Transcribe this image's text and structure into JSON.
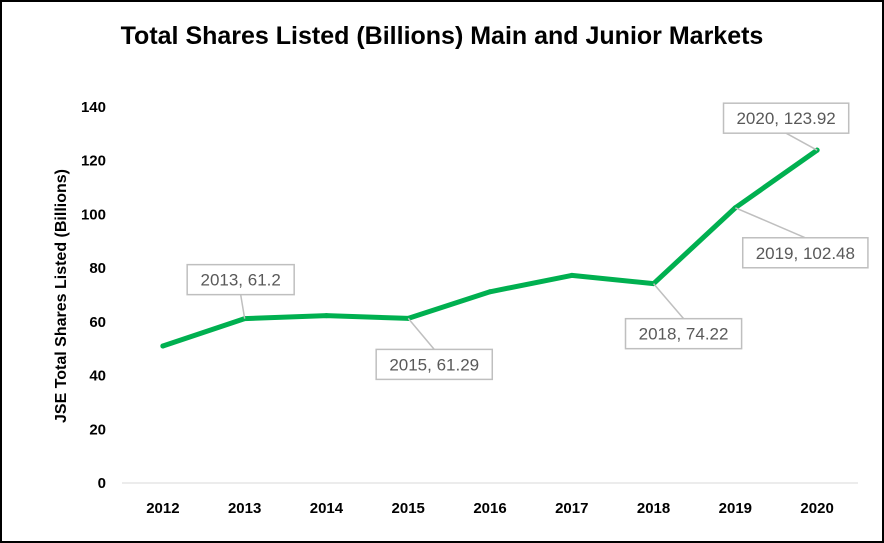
{
  "chart_data": {
    "type": "line",
    "title": "Total Shares Listed (Billions) Main and Junior Markets",
    "xlabel": "",
    "ylabel": "JSE Total Shares Listed (Billions)",
    "ylim": [
      0,
      140
    ],
    "yticks": [
      0,
      20,
      40,
      60,
      80,
      100,
      120,
      140
    ],
    "grid": false,
    "categories": [
      "2012",
      "2013",
      "2014",
      "2015",
      "2016",
      "2017",
      "2018",
      "2019",
      "2020"
    ],
    "series": [
      {
        "name": "JSE Total Shares Listed",
        "color": "#00b050",
        "values": [
          51,
          61.2,
          62.3,
          61.29,
          71.2,
          77.3,
          74.22,
          102.48,
          123.92
        ]
      }
    ],
    "annotations": [
      {
        "index": 1,
        "text": "2013, 61.2"
      },
      {
        "index": 3,
        "text": "2015, 61.29"
      },
      {
        "index": 6,
        "text": "2018, 74.22"
      },
      {
        "index": 7,
        "text": "2019, 102.48"
      },
      {
        "index": 8,
        "text": "2020, 123.92"
      }
    ]
  }
}
